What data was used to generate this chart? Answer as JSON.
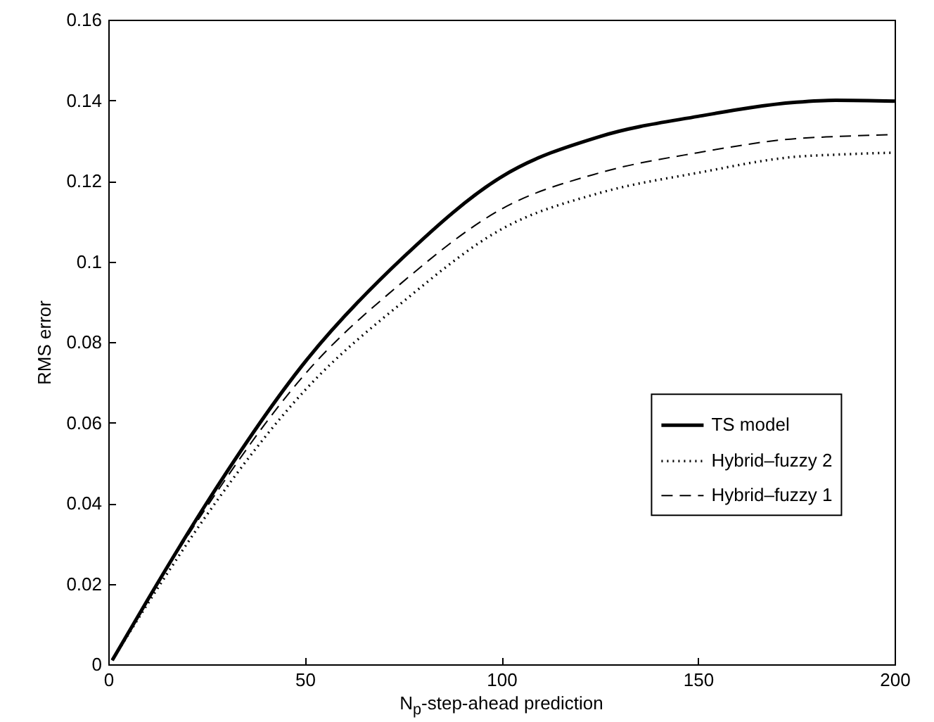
{
  "chart_data": {
    "type": "line",
    "xlabel": "N$_{p}$-step-ahead prediction",
    "ylabel": "RMS error",
    "xlim": [
      0,
      200
    ],
    "xticks": [
      0,
      50,
      100,
      150,
      200
    ],
    "ylim": [
      0,
      0.16
    ],
    "yticks": [
      0,
      0.02,
      0.04,
      0.06,
      0.08,
      0.1,
      0.12,
      0.14,
      0.16
    ],
    "legend": "right",
    "x": [
      1,
      10,
      25,
      50,
      75,
      100,
      125,
      150,
      175,
      185,
      200
    ],
    "series": [
      {
        "name": "TS model",
        "color": "#000000",
        "line_style": "solid",
        "values": [
          0.001,
          0.016,
          0.04,
          0.075,
          0.101,
          0.121,
          0.131,
          0.136,
          0.1395,
          0.14,
          0.1398
        ]
      },
      {
        "name": "Hybrid–fuzzy 2",
        "color": "#000000",
        "line_style": "dotted",
        "values": [
          0.001,
          0.015,
          0.037,
          0.068,
          0.09,
          0.108,
          0.117,
          0.122,
          0.126,
          0.1265,
          0.127
        ]
      },
      {
        "name": "Hybrid–fuzzy 1",
        "color": "#000000",
        "line_style": "dashed",
        "values": [
          0.001,
          0.016,
          0.039,
          0.072,
          0.095,
          0.113,
          0.122,
          0.127,
          0.1305,
          0.131,
          0.1315
        ]
      }
    ]
  }
}
